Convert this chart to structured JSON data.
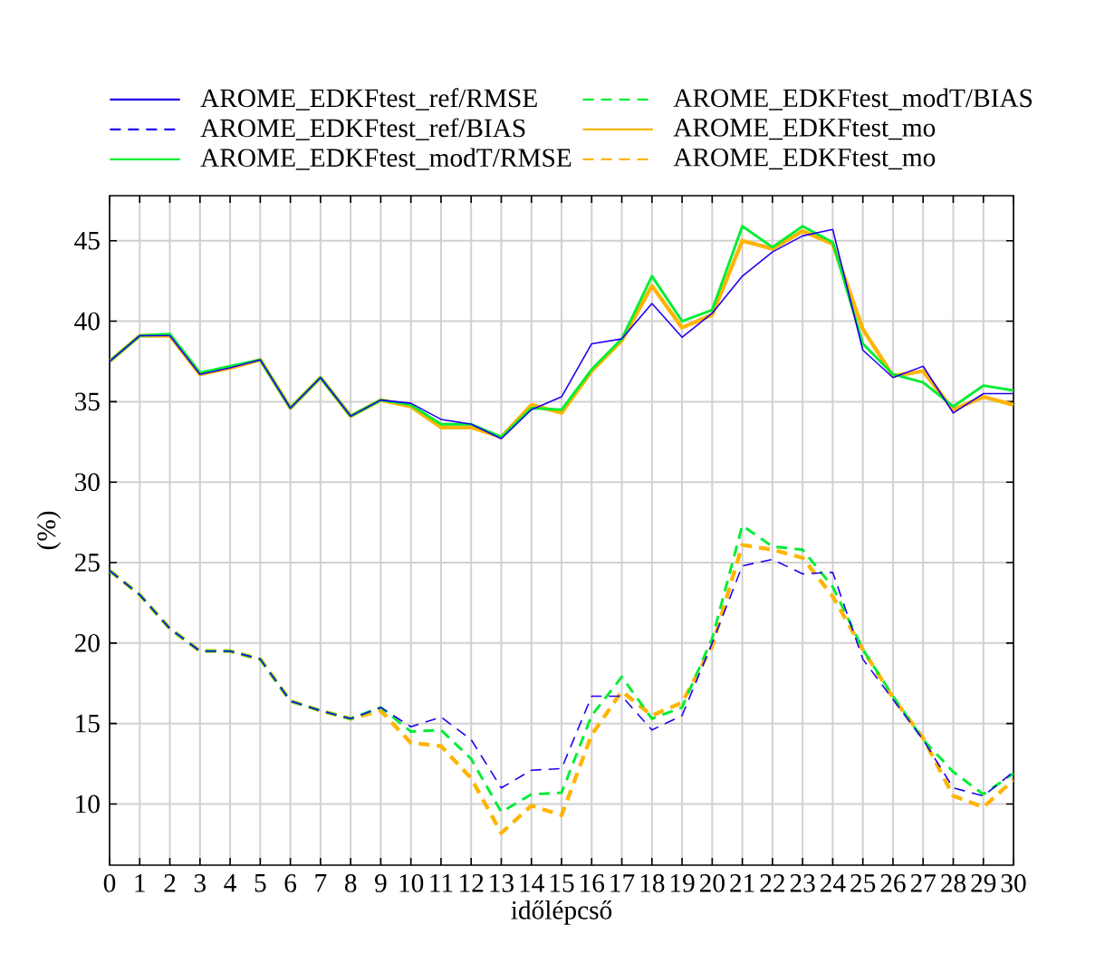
{
  "chart_data": {
    "type": "line",
    "xlabel": "időlépcső",
    "ylabel": "(%)",
    "x": [
      0,
      1,
      2,
      3,
      4,
      5,
      6,
      7,
      8,
      9,
      10,
      11,
      12,
      13,
      14,
      15,
      16,
      17,
      18,
      19,
      20,
      21,
      22,
      23,
      24,
      25,
      26,
      27,
      28,
      29,
      30
    ],
    "xlim": [
      0,
      30
    ],
    "xticks": [
      0,
      1,
      2,
      3,
      4,
      5,
      6,
      7,
      8,
      9,
      10,
      11,
      12,
      13,
      14,
      15,
      16,
      17,
      18,
      19,
      20,
      21,
      22,
      23,
      24,
      25,
      26,
      27,
      28,
      29,
      30
    ],
    "ylim": [
      6.2,
      47.8
    ],
    "yticks": [
      10,
      15,
      20,
      25,
      30,
      35,
      40,
      45
    ],
    "grid": true,
    "legend": "top",
    "series": [
      {
        "name": "AROME_EDKFtest_ref/RMSE",
        "color": "#2200ee",
        "line_style": "solid",
        "values": [
          37.5,
          39.1,
          39.1,
          36.7,
          37.1,
          37.6,
          34.6,
          36.5,
          34.1,
          35.1,
          34.9,
          33.9,
          33.6,
          32.7,
          34.5,
          35.3,
          38.6,
          38.9,
          41.1,
          39.0,
          40.5,
          42.8,
          44.3,
          45.3,
          45.7,
          38.2,
          36.5,
          37.2,
          34.3,
          35.5,
          35.5
        ]
      },
      {
        "name": "AROME_EDKFtest_ref/BIAS",
        "color": "#2200ee",
        "line_style": "dashed",
        "values": [
          24.5,
          23.0,
          20.9,
          19.5,
          19.5,
          19.0,
          16.4,
          15.8,
          15.3,
          16.0,
          14.8,
          15.4,
          14.0,
          11.0,
          12.1,
          12.2,
          16.7,
          16.7,
          14.6,
          15.5,
          20.0,
          24.8,
          25.2,
          24.3,
          24.4,
          19.0,
          16.5,
          14.0,
          11.0,
          10.5,
          12.0
        ]
      },
      {
        "name": "AROME_EDKFtest_modT/RMSE",
        "color": "#00ee33",
        "line_style": "solid",
        "values": [
          37.5,
          39.1,
          39.2,
          36.8,
          37.2,
          37.6,
          34.6,
          36.5,
          34.1,
          35.1,
          34.8,
          33.6,
          33.6,
          32.8,
          34.6,
          34.5,
          37.0,
          38.9,
          42.8,
          40.0,
          40.7,
          45.9,
          44.6,
          45.9,
          44.9,
          38.6,
          36.7,
          36.2,
          34.7,
          36.0,
          35.7
        ]
      },
      {
        "name": "AROME_EDKFtest_modT/BIAS",
        "color": "#00ee33",
        "line_style": "dashed",
        "values": [
          24.5,
          23.0,
          20.9,
          19.5,
          19.5,
          19.0,
          16.4,
          15.8,
          15.3,
          16.0,
          14.5,
          14.6,
          12.8,
          9.5,
          10.6,
          10.7,
          15.5,
          17.9,
          15.3,
          16.0,
          20.3,
          27.3,
          26.0,
          25.8,
          23.5,
          19.6,
          16.7,
          14.0,
          12.0,
          10.6,
          11.9
        ]
      },
      {
        "name": "AROME_EDKFtest_mo",
        "color": "#ffb400",
        "line_style": "solid",
        "values": [
          37.5,
          39.1,
          39.1,
          36.7,
          37.1,
          37.6,
          34.6,
          36.5,
          34.1,
          35.1,
          34.7,
          33.4,
          33.4,
          32.8,
          34.8,
          34.3,
          36.9,
          38.8,
          42.2,
          39.6,
          40.4,
          45.0,
          44.5,
          45.6,
          44.8,
          39.5,
          36.6,
          36.9,
          34.5,
          35.3,
          34.8
        ]
      },
      {
        "name": "AROME_EDKFtest_mo",
        "color": "#ffb400",
        "line_style": "dashed",
        "values": [
          24.5,
          23.0,
          20.9,
          19.5,
          19.5,
          19.0,
          16.4,
          15.8,
          15.3,
          15.8,
          13.8,
          13.6,
          11.6,
          8.2,
          9.9,
          9.3,
          14.3,
          17.0,
          15.5,
          16.3,
          19.8,
          26.1,
          25.8,
          25.3,
          22.9,
          19.6,
          16.6,
          14.1,
          10.5,
          9.8,
          11.5
        ]
      }
    ]
  }
}
